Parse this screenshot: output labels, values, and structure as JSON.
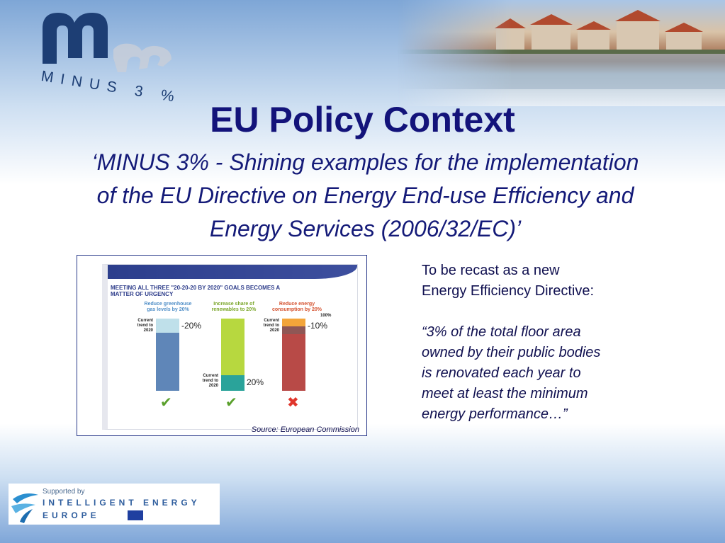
{
  "logo": {
    "text": "MINUS 3 %"
  },
  "slide": {
    "title": "EU Policy Context",
    "subtitle_lines": [
      "‘MINUS 3% - Shining examples for the implementation",
      "of the EU Directive on Energy End-use Efficiency and",
      "Energy Services (2006/32/EC)’"
    ]
  },
  "figure": {
    "headline_line1": "MEETING ALL THREE \"20-20-20 BY 2020\" GOALS BECOMES A",
    "headline_line2": "MATTER OF URGENCY",
    "columns": [
      {
        "label_line1": "Reduce greenhouse",
        "label_line2": "gas levels by 20%",
        "value": "-20%",
        "status": "✔",
        "color": "#5f86b8",
        "top_color": "#bfe0ea",
        "label_color": "#4f8ec7"
      },
      {
        "label_line1": "Increase share of",
        "label_line2": "renewables to 20%",
        "value": "20%",
        "status": "✔",
        "color": "#b7d83f",
        "top_color": "#2aa39a",
        "label_color": "#7aa62a"
      },
      {
        "label_line1": "Reduce energy",
        "label_line2": "consumption by 20%",
        "value": "-10%",
        "status": "✖",
        "color": "#b84a47",
        "top_color": "#f3a53a",
        "label_color": "#d4512e"
      }
    ],
    "trend_label_line1": "Current",
    "trend_label_line2": "trend to",
    "trend_label_line3": "2020",
    "hundred_label": "100%",
    "source": "Source: European Commission"
  },
  "side_text": {
    "intro_line1": "To be recast as a new",
    "intro_line2": "Energy Efficiency Directive:",
    "quote_lines": [
      "“3% of the total floor area",
      "owned by their public bodies",
      "is renovated each year to",
      "meet at least the minimum",
      "energy performance…”"
    ]
  },
  "sponsor": {
    "supported_by": "Supported by",
    "line1": "INTELLIGENT ENERGY",
    "line2": "EUROPE"
  },
  "colors": {
    "title": "#13137a",
    "accent": "#1d3e74",
    "check": "#5aa02c",
    "cross": "#e0362c"
  }
}
